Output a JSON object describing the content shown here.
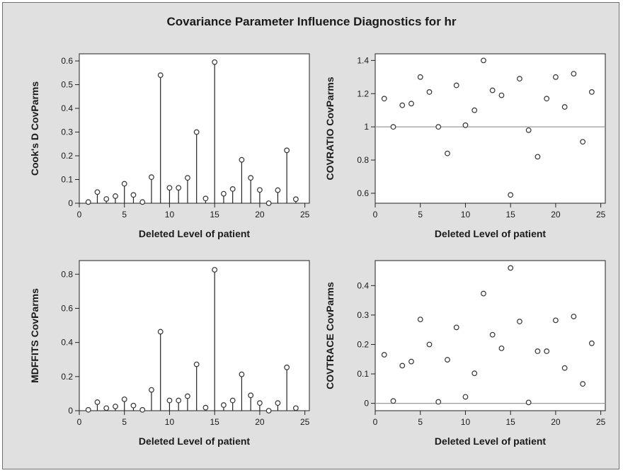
{
  "title": "Covariance Parameter Influence Diagnostics for hr",
  "colors": {
    "background": "#e0e0e0",
    "plot_area": "#ffffff",
    "marker": "#333333",
    "reference_line": "#9a9a9a"
  },
  "chart_data": [
    {
      "type": "needle",
      "xlabel": "Deleted Level of patient",
      "ylabel": "Cook's D CovParms",
      "xlim": [
        0,
        25.5
      ],
      "ylim": [
        0,
        0.63
      ],
      "xticks": [
        0,
        5,
        10,
        15,
        20,
        25
      ],
      "yticks": [
        0,
        0.1,
        0.2,
        0.3,
        0.4,
        0.5,
        0.6
      ],
      "ytick_labels": [
        "0",
        "0.1",
        "0.2",
        "0.3",
        "0.4",
        "0.5",
        "0.6"
      ],
      "x": [
        1,
        2,
        3,
        4,
        5,
        6,
        7,
        8,
        9,
        10,
        11,
        12,
        13,
        14,
        15,
        16,
        17,
        18,
        19,
        20,
        21,
        22,
        23,
        24
      ],
      "values": [
        0.005,
        0.047,
        0.018,
        0.03,
        0.082,
        0.035,
        0.005,
        0.11,
        0.54,
        0.065,
        0.065,
        0.107,
        0.3,
        0.02,
        0.595,
        0.04,
        0.06,
        0.183,
        0.107,
        0.056,
        0.0,
        0.055,
        0.223,
        0.017
      ]
    },
    {
      "type": "scatter",
      "xlabel": "Deleted Level of patient",
      "ylabel": "COVRATIO CovParms",
      "xlim": [
        0,
        25.5
      ],
      "ylim": [
        0.54,
        1.44
      ],
      "xticks": [
        0,
        5,
        10,
        15,
        20,
        25
      ],
      "yticks": [
        0.6,
        0.8,
        1.0,
        1.2,
        1.4
      ],
      "ytick_labels": [
        "0.6",
        "0.8",
        "1",
        "1.2",
        "1.4"
      ],
      "reference_y": 1,
      "x": [
        1,
        2,
        3,
        4,
        5,
        6,
        7,
        8,
        9,
        10,
        11,
        12,
        13,
        14,
        15,
        16,
        17,
        18,
        19,
        20,
        21,
        22,
        23,
        24
      ],
      "values": [
        1.17,
        1.0,
        1.13,
        1.14,
        1.3,
        1.21,
        1.0,
        0.84,
        1.25,
        1.01,
        1.1,
        1.4,
        1.22,
        1.19,
        0.59,
        1.29,
        0.98,
        0.82,
        1.17,
        1.3,
        1.12,
        1.32,
        0.91,
        1.21
      ]
    },
    {
      "type": "needle",
      "xlabel": "Deleted Level of patient",
      "ylabel": "MDFFITS CovParms",
      "xlim": [
        0,
        25.5
      ],
      "ylim": [
        0,
        0.88
      ],
      "xticks": [
        0,
        5,
        10,
        15,
        20,
        25
      ],
      "yticks": [
        0,
        0.2,
        0.4,
        0.6,
        0.8
      ],
      "ytick_labels": [
        "0",
        "0.2",
        "0.4",
        "0.6",
        "0.8"
      ],
      "x": [
        1,
        2,
        3,
        4,
        5,
        6,
        7,
        8,
        9,
        10,
        11,
        12,
        13,
        14,
        15,
        16,
        17,
        18,
        19,
        20,
        21,
        22,
        23,
        24
      ],
      "values": [
        0.005,
        0.05,
        0.015,
        0.025,
        0.067,
        0.03,
        0.005,
        0.122,
        0.463,
        0.06,
        0.06,
        0.085,
        0.272,
        0.018,
        0.826,
        0.033,
        0.06,
        0.213,
        0.09,
        0.045,
        0.0,
        0.045,
        0.254,
        0.015
      ]
    },
    {
      "type": "scatter",
      "xlabel": "Deleted Level of patient",
      "ylabel": "COVTRACE CovParms",
      "xlim": [
        0,
        25.5
      ],
      "ylim": [
        -0.025,
        0.485
      ],
      "xticks": [
        0,
        5,
        10,
        15,
        20,
        25
      ],
      "yticks": [
        0,
        0.1,
        0.2,
        0.3,
        0.4
      ],
      "ytick_labels": [
        "0",
        "0.1",
        "0.2",
        "0.3",
        "0.4"
      ],
      "reference_y": 0,
      "x": [
        1,
        2,
        3,
        4,
        5,
        6,
        7,
        8,
        9,
        10,
        11,
        12,
        13,
        14,
        15,
        16,
        17,
        18,
        19,
        20,
        21,
        22,
        23,
        24
      ],
      "values": [
        0.165,
        0.008,
        0.128,
        0.142,
        0.285,
        0.2,
        0.005,
        0.148,
        0.258,
        0.022,
        0.102,
        0.373,
        0.233,
        0.187,
        0.46,
        0.278,
        0.003,
        0.177,
        0.177,
        0.282,
        0.12,
        0.295,
        0.066,
        0.204
      ]
    }
  ]
}
